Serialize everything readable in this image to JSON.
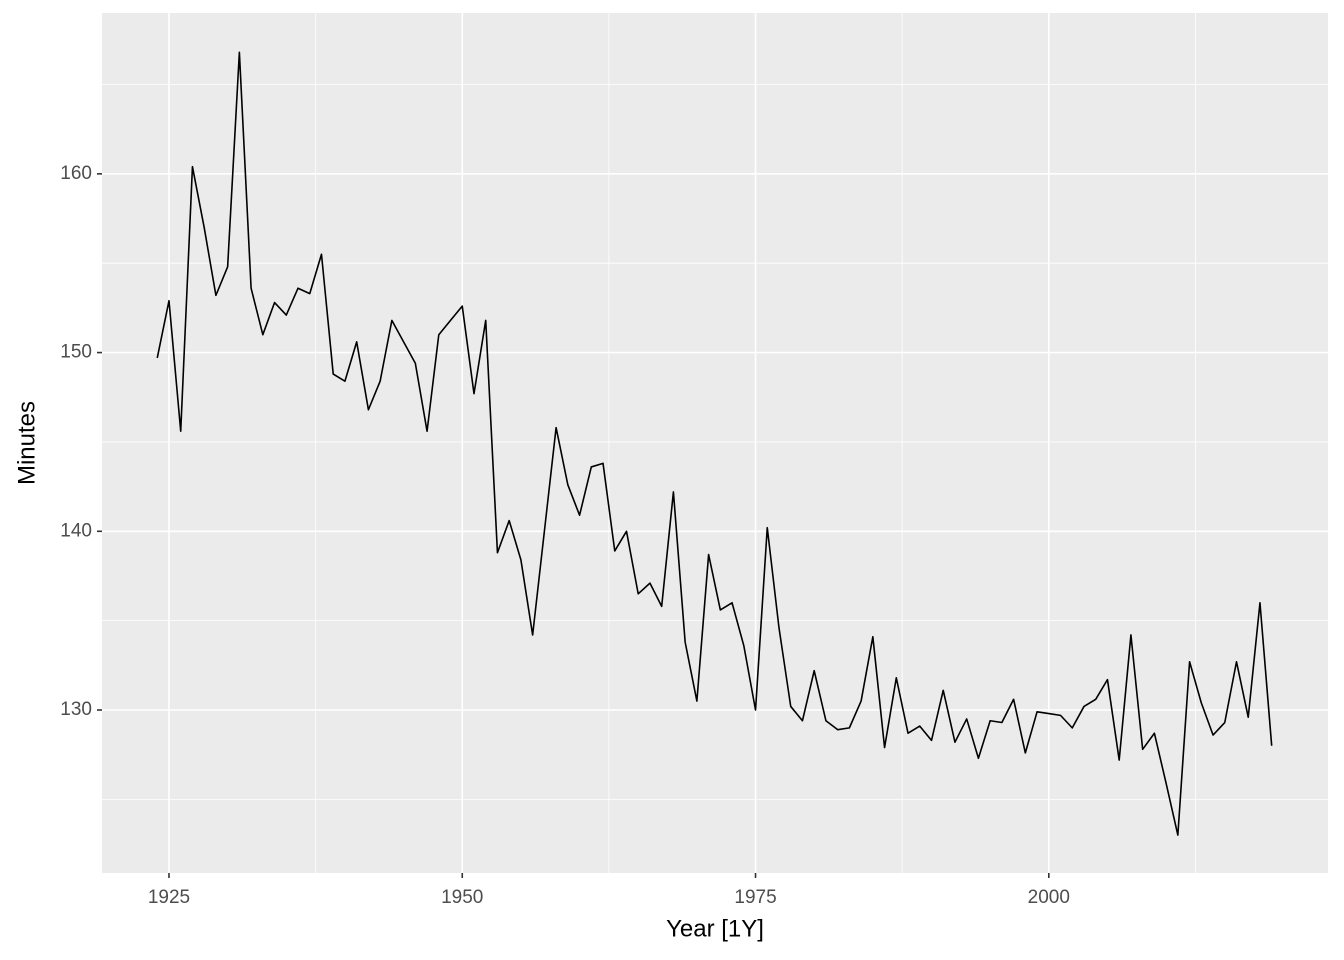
{
  "chart_data": {
    "type": "line",
    "x": [
      1924,
      1925,
      1926,
      1927,
      1928,
      1929,
      1930,
      1931,
      1932,
      1933,
      1934,
      1935,
      1936,
      1937,
      1938,
      1939,
      1940,
      1941,
      1942,
      1943,
      1944,
      1945,
      1946,
      1947,
      1948,
      1949,
      1950,
      1951,
      1952,
      1953,
      1954,
      1955,
      1956,
      1957,
      1958,
      1959,
      1960,
      1961,
      1962,
      1963,
      1964,
      1965,
      1966,
      1967,
      1968,
      1969,
      1970,
      1971,
      1972,
      1973,
      1974,
      1975,
      1976,
      1977,
      1978,
      1979,
      1980,
      1981,
      1982,
      1983,
      1984,
      1985,
      1986,
      1987,
      1988,
      1989,
      1990,
      1991,
      1992,
      1993,
      1994,
      1995,
      1996,
      1997,
      1998,
      1999,
      2000,
      2001,
      2002,
      2003,
      2004,
      2005,
      2006,
      2007,
      2008,
      2009,
      2010,
      2011,
      2012,
      2013,
      2014,
      2015,
      2016,
      2017,
      2018,
      2019
    ],
    "series": [
      {
        "color": "#000000",
        "values": [
          149.7,
          152.9,
          145.6,
          160.4,
          157.0,
          153.2,
          154.8,
          166.8,
          153.6,
          151.0,
          152.8,
          152.1,
          153.6,
          153.3,
          155.5,
          148.8,
          148.4,
          150.6,
          146.8,
          148.4,
          151.8,
          150.6,
          149.4,
          145.6,
          151.0,
          151.8,
          152.6,
          147.7,
          151.8,
          138.8,
          140.6,
          138.4,
          134.2,
          140.0,
          145.8,
          142.6,
          140.9,
          143.6,
          143.8,
          138.9,
          140.0,
          136.5,
          137.1,
          135.8,
          142.2,
          133.8,
          130.5,
          138.7,
          135.6,
          136.0,
          133.6,
          130.0,
          140.2,
          134.6,
          130.2,
          129.4,
          132.2,
          129.4,
          128.9,
          129.0,
          130.5,
          134.1,
          127.9,
          131.8,
          128.7,
          129.1,
          128.3,
          131.1,
          128.2,
          129.5,
          127.3,
          129.4,
          129.3,
          130.6,
          127.6,
          129.9,
          129.8,
          129.7,
          129.0,
          130.2,
          130.6,
          131.7,
          127.2,
          134.2,
          127.8,
          128.7,
          125.9,
          123.0,
          132.7,
          130.4,
          128.6,
          129.3,
          132.7,
          129.6,
          136.0,
          128.0
        ]
      }
    ],
    "x_label": "Year [1Y]",
    "y_label": "Minutes",
    "xlim": [
      1919.29,
      2023.8
    ],
    "ylim": [
      120.88,
      169.0
    ],
    "xticks": [
      1925,
      1950,
      1975,
      2000
    ],
    "yticks": [
      130,
      140,
      150,
      160
    ],
    "grid": true
  }
}
